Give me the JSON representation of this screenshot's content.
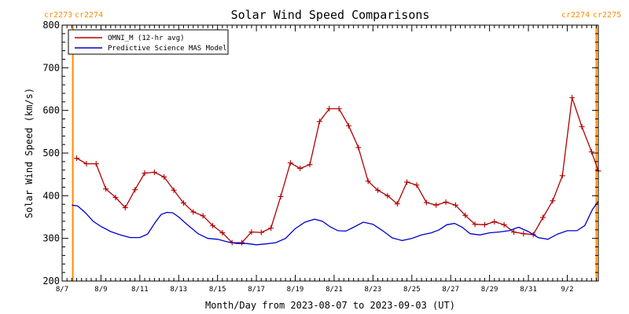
{
  "chart_data": {
    "type": "line",
    "title": "Solar Wind Speed Comparisons",
    "xlabel": "Month/Day from 2023-08-07 to 2023-09-03 (UT)",
    "ylabel": "Solar Wind Speed (km/s)",
    "x_unit": "days since 2023-08-07",
    "xlim": [
      0,
      27.6
    ],
    "ylim": [
      200,
      800
    ],
    "x_ticks": [
      {
        "x": 0,
        "label": "8/7"
      },
      {
        "x": 2,
        "label": "8/9"
      },
      {
        "x": 4,
        "label": "8/11"
      },
      {
        "x": 6,
        "label": "8/13"
      },
      {
        "x": 8,
        "label": "8/15"
      },
      {
        "x": 10,
        "label": "8/17"
      },
      {
        "x": 12,
        "label": "8/19"
      },
      {
        "x": 14,
        "label": "8/21"
      },
      {
        "x": 16,
        "label": "8/23"
      },
      {
        "x": 18,
        "label": "8/25"
      },
      {
        "x": 20,
        "label": "8/27"
      },
      {
        "x": 22,
        "label": "8/29"
      },
      {
        "x": 24,
        "label": "8/31"
      },
      {
        "x": 26,
        "label": "9/2"
      }
    ],
    "y_ticks": [
      200,
      300,
      400,
      500,
      600,
      700,
      800
    ],
    "legend_position": "top-left",
    "rotation_markers": [
      {
        "x": 0.55,
        "left_label": "cr2273",
        "right_label": "cr2274",
        "side": "left"
      },
      {
        "x": 27.5,
        "left_label": "cr2274",
        "right_label": "cr2275",
        "side": "right"
      }
    ],
    "series": [
      {
        "name": "OMNI_M (12-hr avg)",
        "color": "#b00000",
        "marker": "+",
        "x": [
          0.75,
          1.25,
          1.75,
          2.25,
          2.75,
          3.25,
          3.75,
          4.25,
          4.75,
          5.25,
          5.75,
          6.25,
          6.75,
          7.25,
          7.75,
          8.25,
          8.75,
          9.25,
          9.75,
          10.25,
          10.75,
          11.25,
          11.75,
          12.25,
          12.75,
          13.25,
          13.75,
          14.25,
          14.75,
          15.25,
          15.75,
          16.25,
          16.75,
          17.25,
          17.75,
          18.25,
          18.75,
          19.25,
          19.75,
          20.25,
          20.75,
          21.25,
          21.75,
          22.25,
          22.75,
          23.25,
          23.75,
          24.25,
          24.75,
          25.25,
          25.75,
          26.25,
          26.75,
          27.25,
          27.75
        ],
        "values": [
          488,
          475,
          475,
          416,
          396,
          372,
          414,
          453,
          455,
          444,
          413,
          383,
          362,
          353,
          330,
          313,
          290,
          290,
          315,
          314,
          324,
          398,
          477,
          464,
          473,
          574,
          604,
          604,
          564,
          513,
          434,
          413,
          400,
          381,
          432,
          425,
          384,
          378,
          385,
          378,
          354,
          333,
          332,
          339,
          332,
          315,
          311,
          309,
          349,
          388,
          447,
          630,
          562,
          503,
          458
        ]
      },
      {
        "name": "Predictive Science MAS Model",
        "color": "#0000cc",
        "marker": "",
        "x": [
          0.5,
          0.8,
          1.2,
          1.6,
          2.0,
          2.5,
          3.0,
          3.5,
          4.0,
          4.4,
          4.8,
          5.1,
          5.4,
          5.7,
          6.0,
          6.5,
          7.0,
          7.5,
          8.0,
          8.5,
          9.0,
          9.5,
          10.0,
          10.5,
          11.0,
          11.5,
          12.0,
          12.5,
          13.0,
          13.4,
          13.8,
          14.2,
          14.6,
          15.0,
          15.5,
          16.0,
          16.5,
          17.0,
          17.5,
          18.0,
          18.5,
          19.0,
          19.4,
          19.8,
          20.2,
          20.6,
          21.0,
          21.5,
          22.0,
          22.5,
          23.0,
          23.5,
          24.0,
          24.5,
          25.0,
          25.5,
          26.0,
          26.5,
          26.9,
          27.3,
          27.6
        ],
        "values": [
          378,
          376,
          360,
          340,
          328,
          316,
          308,
          302,
          302,
          310,
          338,
          356,
          361,
          360,
          350,
          330,
          311,
          300,
          298,
          292,
          288,
          288,
          285,
          287,
          290,
          300,
          323,
          338,
          345,
          340,
          327,
          318,
          317,
          326,
          338,
          333,
          318,
          301,
          295,
          300,
          308,
          313,
          320,
          332,
          335,
          326,
          311,
          308,
          313,
          315,
          318,
          326,
          316,
          302,
          298,
          310,
          318,
          318,
          330,
          368,
          387
        ]
      }
    ]
  }
}
